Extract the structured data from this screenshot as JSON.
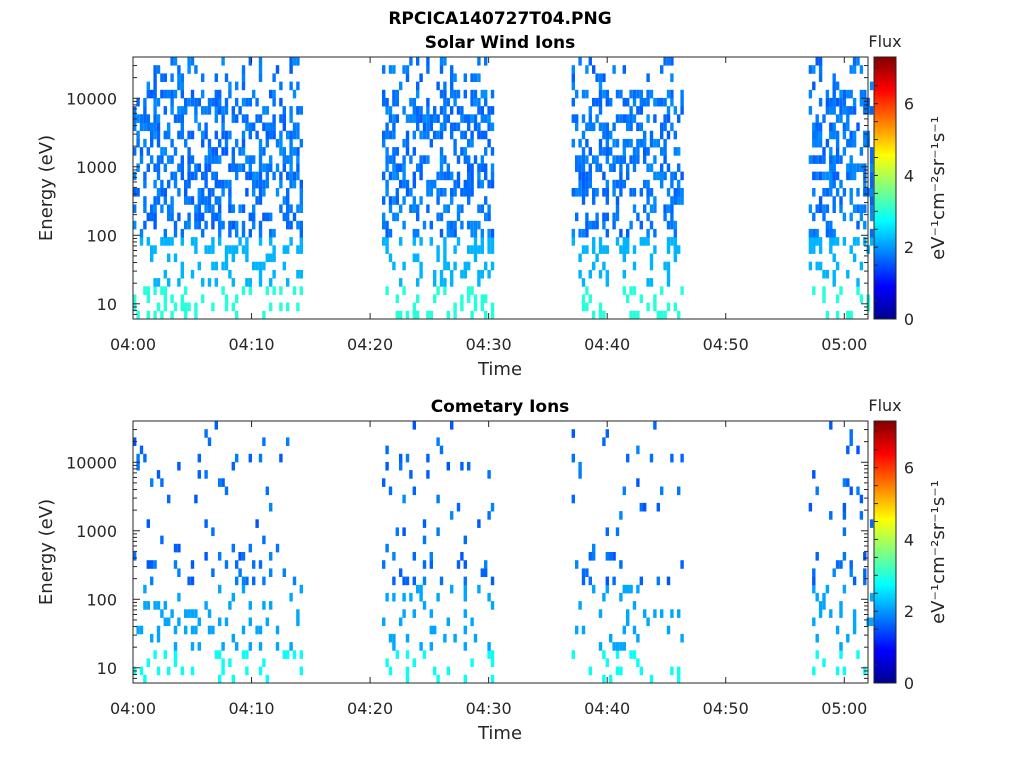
{
  "figure_title": "RPCICA140727T04.PNG",
  "chart_data": [
    {
      "type": "heatmap",
      "title": "Solar Wind Ions",
      "xlabel": "Time",
      "ylabel": "Energy (eV)",
      "x_ticks": [
        "04:00",
        "04:10",
        "04:20",
        "04:30",
        "04:40",
        "04:50",
        "05:00"
      ],
      "xlim": [
        "04:00",
        "05:02"
      ],
      "y_scale": "log",
      "y_ticks": [
        10,
        100,
        1000,
        10000
      ],
      "ylim": [
        6,
        40000
      ],
      "colorbar": {
        "label": "eV⁻¹cm⁻²sr⁻¹s⁻¹",
        "title": "Flux",
        "range": [
          0,
          7.3
        ],
        "ticks": [
          0,
          2,
          4,
          6
        ]
      },
      "data_blocks": [
        {
          "start": "04:00",
          "end": "04:14"
        },
        {
          "start": "04:21",
          "end": "04:30"
        },
        {
          "start": "04:37",
          "end": "04:46"
        },
        {
          "start": "04:57",
          "end": "05:02"
        }
      ],
      "data_note": "sparse counts mostly flux 1.5-3; highest (~3) at ~10 eV",
      "grid": false
    },
    {
      "type": "heatmap",
      "title": "Cometary Ions",
      "xlabel": "Time",
      "ylabel": "Energy (eV)",
      "x_ticks": [
        "04:00",
        "04:10",
        "04:20",
        "04:30",
        "04:40",
        "04:50",
        "05:00"
      ],
      "xlim": [
        "04:00",
        "05:02"
      ],
      "y_scale": "log",
      "y_ticks": [
        10,
        100,
        1000,
        10000
      ],
      "ylim": [
        6,
        40000
      ],
      "colorbar": {
        "label": "eV⁻¹cm⁻²sr⁻¹s⁻¹",
        "title": "Flux",
        "range": [
          0,
          7.3
        ],
        "ticks": [
          0,
          2,
          4,
          6
        ]
      },
      "data_blocks": [
        {
          "start": "04:00",
          "end": "04:14"
        },
        {
          "start": "04:21",
          "end": "04:30"
        },
        {
          "start": "04:37",
          "end": "04:46"
        },
        {
          "start": "04:57",
          "end": "05:02"
        }
      ],
      "data_note": "very sparse counts, flux 1-3",
      "grid": false
    }
  ]
}
